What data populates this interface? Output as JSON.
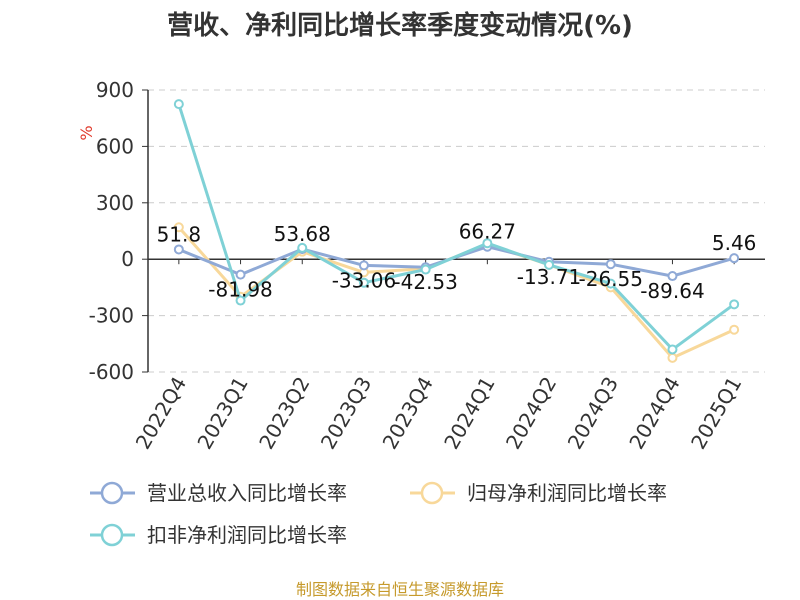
{
  "chart_data": {
    "type": "line",
    "title": "营收、净利同比增长率季度变动情况(%)",
    "unit_label": "%",
    "x": [
      "2022Q4",
      "2023Q1",
      "2023Q2",
      "2023Q3",
      "2023Q4",
      "2024Q1",
      "2024Q2",
      "2024Q3",
      "2024Q4",
      "2025Q1"
    ],
    "ylim": [
      -600,
      900
    ],
    "yticks": [
      900,
      600,
      300,
      0,
      -300,
      -600
    ],
    "grid": true,
    "legend_position": "bottom",
    "series": [
      {
        "name": "营业总收入同比增长率",
        "color": "#8fa9d6",
        "values": [
          51.8,
          -81.98,
          53.68,
          -33.06,
          -42.53,
          66.27,
          -13.71,
          -26.55,
          -89.64,
          5.46
        ],
        "data_labels": [
          "51.8",
          "-81.98",
          "53.68",
          "-33.06",
          "-42.53",
          "66.27",
          "-13.71",
          "-26.55",
          "-89.64",
          "5.46"
        ]
      },
      {
        "name": "归母净利润同比增长率",
        "color": "#f8d89a",
        "values": [
          170,
          -200,
          40,
          -70,
          -50,
          80,
          -30,
          -150,
          -525,
          -375
        ]
      },
      {
        "name": "扣非净利润同比增长率",
        "color": "#7fd1d6",
        "values": [
          825,
          -220,
          60,
          -125,
          -55,
          85,
          -30,
          -130,
          -480,
          -240
        ]
      }
    ],
    "source": "制图数据来自恒生聚源数据库"
  }
}
